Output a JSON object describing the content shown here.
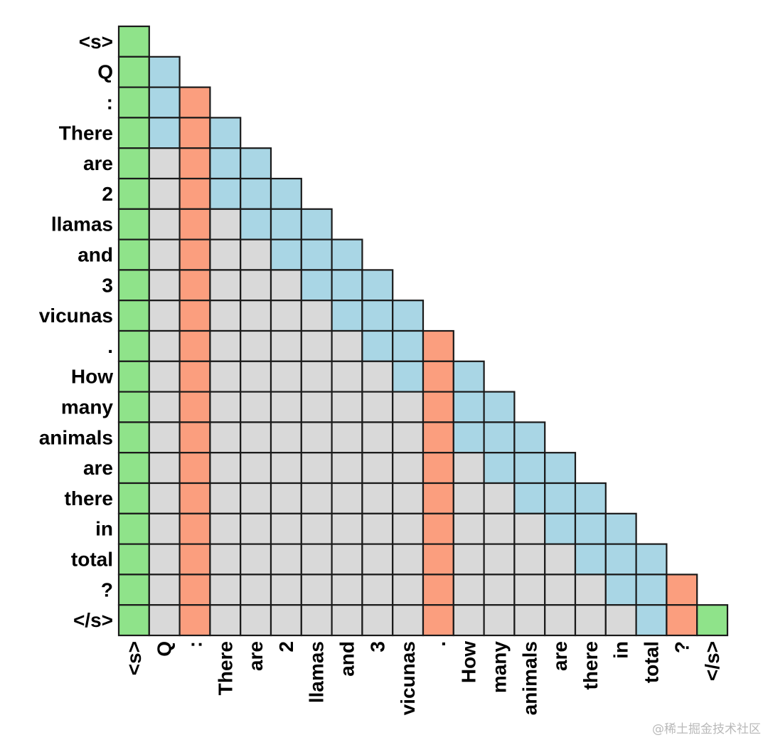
{
  "tokens": [
    "<s>",
    "Q",
    ":",
    "There",
    "are",
    "2",
    "llamas",
    "and",
    "3",
    "vicunas",
    ".",
    "How",
    "many",
    "animals",
    "are",
    "there",
    "in",
    "total",
    "?",
    "</s>"
  ],
  "legend_colors": {
    "green": "#8fe38a",
    "blue": "#a9d6e5",
    "orange": "#fb9e7e",
    "gray": "#d9d9d9"
  },
  "mask": [
    "G",
    "GB",
    "GBO",
    "GBOB",
    "GXOBB",
    "GXOBBB",
    "GXOXBBB",
    "GXOXXBBB",
    "GXOXXXBBB",
    "GXOXXXXBBB",
    "GXOXXXXXBBO",
    "GXOXXXXXXBOB",
    "GXOXXXXXXXOBB",
    "GXOXXXXXXXOBBB",
    "GXOXXXXXXXOXBBB",
    "GXOXXXXXXXOXXBBB",
    "GXOXXXXXXXOXXXBBB",
    "GXOXXXXXXXOXXXXBBB",
    "GXOXXXXXXXOXXXXXBBO",
    "GXOXXXXXXXOXXXXXXBOG"
  ],
  "watermark": "@稀土掘金技术社区"
}
